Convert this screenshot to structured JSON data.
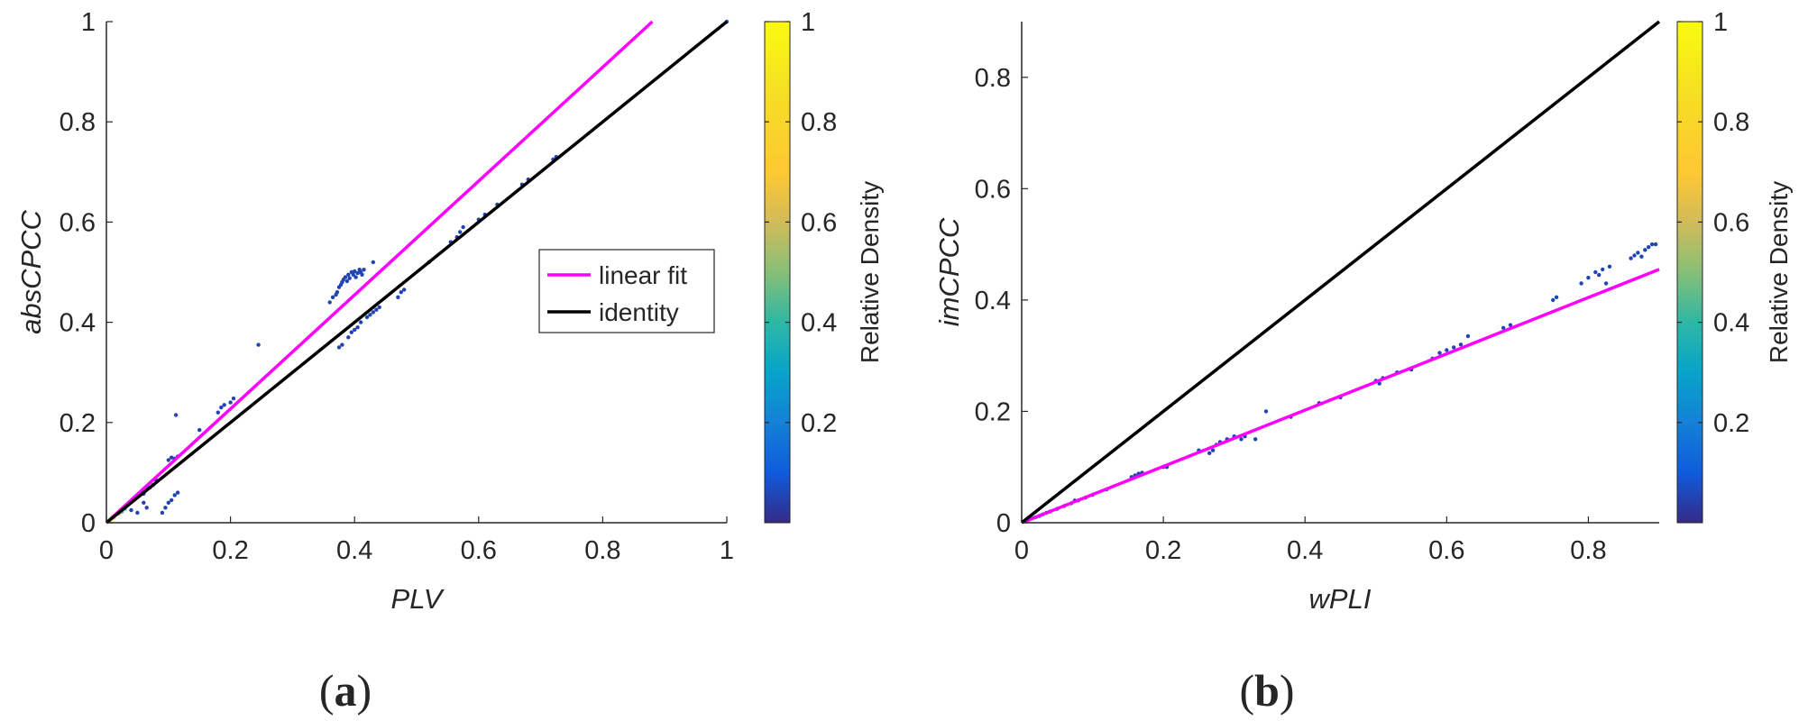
{
  "chart_data": [
    {
      "panel_label": {
        "open": "(",
        "letter": "a",
        "close": ")"
      },
      "type": "scatter",
      "title": "",
      "xlabel": "PLV",
      "ylabel": "absCPCC",
      "xlim": [
        0,
        1
      ],
      "ylim": [
        0,
        1
      ],
      "x_ticks": [
        0,
        0.2,
        0.4,
        0.6,
        0.8,
        1
      ],
      "x_tick_labels": [
        "0",
        "0.2",
        "0.4",
        "0.6",
        "0.8",
        "1"
      ],
      "y_ticks": [
        0,
        0.2,
        0.4,
        0.6,
        0.8,
        1
      ],
      "y_tick_labels": [
        "0",
        "0.2",
        "0.4",
        "0.6",
        "0.8",
        "1"
      ],
      "grid": false,
      "legend": {
        "placement": "center-right",
        "entries": [
          {
            "label": "linear fit",
            "color": "#ff00ff"
          },
          {
            "label": "identity",
            "color": "#000000"
          }
        ]
      },
      "lines": [
        {
          "name": "linear fit",
          "color": "#ff00ff",
          "x": [
            0,
            0.88
          ],
          "y": [
            0,
            1
          ]
        },
        {
          "name": "identity",
          "color": "#000000",
          "x": [
            0,
            1
          ],
          "y": [
            0,
            1
          ]
        }
      ],
      "colorbar": {
        "label": "Relative Density",
        "ticks": [
          0.2,
          0.4,
          0.6,
          0.8,
          1
        ],
        "tick_labels": [
          "0.2",
          "0.4",
          "0.6",
          "0.8",
          "1"
        ],
        "range": [
          0,
          1
        ]
      },
      "points": [
        [
          0.005,
          0.004,
          1.0
        ],
        [
          0.008,
          0.007,
          0.95
        ],
        [
          0.01,
          0.012,
          0.9
        ],
        [
          0.012,
          0.01,
          0.85
        ],
        [
          0.015,
          0.016,
          0.8
        ],
        [
          0.018,
          0.02,
          0.7
        ],
        [
          0.02,
          0.018,
          0.6
        ],
        [
          0.022,
          0.025,
          0.55
        ],
        [
          0.025,
          0.022,
          0.45
        ],
        [
          0.028,
          0.03,
          0.4
        ],
        [
          0.03,
          0.028,
          0.35
        ],
        [
          0.032,
          0.035,
          0.3
        ],
        [
          0.035,
          0.038,
          0.25
        ],
        [
          0.038,
          0.04,
          0.2
        ],
        [
          0.04,
          0.043,
          0.15
        ],
        [
          0.043,
          0.045,
          0.12
        ],
        [
          0.045,
          0.05,
          0.1
        ],
        [
          0.048,
          0.052,
          0.08
        ],
        [
          0.05,
          0.055,
          0.06
        ],
        [
          0.055,
          0.06,
          0.05
        ],
        [
          0.06,
          0.058,
          0.05
        ],
        [
          0.065,
          0.067,
          0.05
        ],
        [
          0.07,
          0.07,
          0.05
        ],
        [
          0.075,
          0.075,
          0.05
        ],
        [
          0.08,
          0.085,
          0.05
        ],
        [
          0.06,
          0.04,
          0.05
        ],
        [
          0.065,
          0.03,
          0.05
        ],
        [
          0.05,
          0.02,
          0.05
        ],
        [
          0.04,
          0.025,
          0.05
        ],
        [
          0.09,
          0.02,
          0.05
        ],
        [
          0.095,
          0.03,
          0.05
        ],
        [
          0.1,
          0.04,
          0.05
        ],
        [
          0.105,
          0.045,
          0.05
        ],
        [
          0.11,
          0.055,
          0.05
        ],
        [
          0.115,
          0.06,
          0.05
        ],
        [
          0.1,
          0.125,
          0.05
        ],
        [
          0.105,
          0.13,
          0.05
        ],
        [
          0.11,
          0.128,
          0.05
        ],
        [
          0.115,
          0.132,
          0.05
        ],
        [
          0.112,
          0.215,
          0.05
        ],
        [
          0.15,
          0.185,
          0.05
        ],
        [
          0.18,
          0.22,
          0.05
        ],
        [
          0.185,
          0.23,
          0.05
        ],
        [
          0.19,
          0.235,
          0.05
        ],
        [
          0.2,
          0.24,
          0.05
        ],
        [
          0.205,
          0.248,
          0.05
        ],
        [
          0.245,
          0.355,
          0.05
        ],
        [
          0.36,
          0.44,
          0.05
        ],
        [
          0.365,
          0.45,
          0.05
        ],
        [
          0.37,
          0.455,
          0.05
        ],
        [
          0.372,
          0.46,
          0.05
        ],
        [
          0.375,
          0.47,
          0.05
        ],
        [
          0.378,
          0.475,
          0.05
        ],
        [
          0.38,
          0.48,
          0.05
        ],
        [
          0.382,
          0.485,
          0.05
        ],
        [
          0.385,
          0.49,
          0.05
        ],
        [
          0.388,
          0.482,
          0.05
        ],
        [
          0.39,
          0.495,
          0.05
        ],
        [
          0.392,
          0.488,
          0.05
        ],
        [
          0.395,
          0.5,
          0.05
        ],
        [
          0.398,
          0.495,
          0.05
        ],
        [
          0.4,
          0.502,
          0.05
        ],
        [
          0.402,
          0.49,
          0.05
        ],
        [
          0.405,
          0.498,
          0.05
        ],
        [
          0.408,
          0.505,
          0.05
        ],
        [
          0.41,
          0.5,
          0.05
        ],
        [
          0.412,
          0.495,
          0.05
        ],
        [
          0.415,
          0.505,
          0.05
        ],
        [
          0.375,
          0.35,
          0.05
        ],
        [
          0.38,
          0.355,
          0.05
        ],
        [
          0.39,
          0.37,
          0.05
        ],
        [
          0.395,
          0.38,
          0.05
        ],
        [
          0.4,
          0.385,
          0.05
        ],
        [
          0.405,
          0.39,
          0.05
        ],
        [
          0.41,
          0.4,
          0.05
        ],
        [
          0.42,
          0.41,
          0.05
        ],
        [
          0.425,
          0.415,
          0.05
        ],
        [
          0.43,
          0.42,
          0.05
        ],
        [
          0.435,
          0.425,
          0.05
        ],
        [
          0.44,
          0.43,
          0.05
        ],
        [
          0.43,
          0.52,
          0.05
        ],
        [
          0.47,
          0.45,
          0.05
        ],
        [
          0.475,
          0.46,
          0.05
        ],
        [
          0.48,
          0.465,
          0.05
        ],
        [
          0.52,
          0.52,
          0.05
        ],
        [
          0.555,
          0.56,
          0.05
        ],
        [
          0.565,
          0.57,
          0.05
        ],
        [
          0.57,
          0.58,
          0.05
        ],
        [
          0.575,
          0.59,
          0.05
        ],
        [
          0.6,
          0.605,
          0.05
        ],
        [
          0.61,
          0.615,
          0.05
        ],
        [
          0.63,
          0.635,
          0.05
        ],
        [
          0.67,
          0.675,
          0.05
        ],
        [
          0.68,
          0.685,
          0.05
        ],
        [
          0.72,
          0.725,
          0.05
        ],
        [
          0.725,
          0.73,
          0.05
        ],
        [
          1.0,
          1.0,
          0.05
        ]
      ]
    },
    {
      "panel_label": {
        "open": "(",
        "letter": "b",
        "close": ")"
      },
      "type": "scatter",
      "title": "",
      "xlabel": "wPLI",
      "ylabel": "imCPCC",
      "xlim": [
        0,
        0.9
      ],
      "ylim": [
        0,
        0.9
      ],
      "x_ticks": [
        0,
        0.2,
        0.4,
        0.6,
        0.8
      ],
      "x_tick_labels": [
        "0",
        "0.2",
        "0.4",
        "0.6",
        "0.8"
      ],
      "y_ticks": [
        0,
        0.2,
        0.4,
        0.6,
        0.8
      ],
      "y_tick_labels": [
        "0",
        "0.2",
        "0.4",
        "0.6",
        "0.8"
      ],
      "grid": false,
      "lines": [
        {
          "name": "linear fit",
          "color": "#ff00ff",
          "x": [
            0,
            0.9
          ],
          "y": [
            0,
            0.455
          ]
        },
        {
          "name": "identity",
          "color": "#000000",
          "x": [
            0,
            0.9
          ],
          "y": [
            0,
            0.9
          ]
        }
      ],
      "colorbar": {
        "label": "Relative Density",
        "ticks": [
          0.2,
          0.4,
          0.6,
          0.8,
          1
        ],
        "tick_labels": [
          "0.2",
          "0.4",
          "0.6",
          "0.8",
          "1"
        ],
        "range": [
          0,
          1
        ]
      },
      "points": [
        [
          0.003,
          0.002,
          1.0
        ],
        [
          0.005,
          0.003,
          0.9
        ],
        [
          0.008,
          0.004,
          0.8
        ],
        [
          0.01,
          0.005,
          0.7
        ],
        [
          0.012,
          0.006,
          0.6
        ],
        [
          0.015,
          0.008,
          0.5
        ],
        [
          0.018,
          0.009,
          0.4
        ],
        [
          0.02,
          0.01,
          0.3
        ],
        [
          0.025,
          0.012,
          0.2
        ],
        [
          0.03,
          0.015,
          0.12
        ],
        [
          0.035,
          0.018,
          0.08
        ],
        [
          0.04,
          0.02,
          0.05
        ],
        [
          0.05,
          0.025,
          0.05
        ],
        [
          0.06,
          0.03,
          0.05
        ],
        [
          0.07,
          0.035,
          0.05
        ],
        [
          0.075,
          0.04,
          0.05
        ],
        [
          0.08,
          0.04,
          0.05
        ],
        [
          0.09,
          0.045,
          0.05
        ],
        [
          0.1,
          0.05,
          0.05
        ],
        [
          0.12,
          0.06,
          0.05
        ],
        [
          0.155,
          0.082,
          0.05
        ],
        [
          0.16,
          0.085,
          0.05
        ],
        [
          0.165,
          0.088,
          0.05
        ],
        [
          0.17,
          0.09,
          0.05
        ],
        [
          0.2,
          0.1,
          0.05
        ],
        [
          0.205,
          0.1,
          0.05
        ],
        [
          0.25,
          0.13,
          0.05
        ],
        [
          0.265,
          0.125,
          0.05
        ],
        [
          0.27,
          0.13,
          0.05
        ],
        [
          0.275,
          0.14,
          0.05
        ],
        [
          0.28,
          0.145,
          0.05
        ],
        [
          0.29,
          0.15,
          0.05
        ],
        [
          0.3,
          0.155,
          0.05
        ],
        [
          0.31,
          0.15,
          0.05
        ],
        [
          0.315,
          0.155,
          0.05
        ],
        [
          0.33,
          0.15,
          0.05
        ],
        [
          0.345,
          0.2,
          0.05
        ],
        [
          0.38,
          0.19,
          0.05
        ],
        [
          0.42,
          0.215,
          0.05
        ],
        [
          0.45,
          0.225,
          0.05
        ],
        [
          0.5,
          0.255,
          0.05
        ],
        [
          0.505,
          0.25,
          0.05
        ],
        [
          0.51,
          0.26,
          0.05
        ],
        [
          0.53,
          0.27,
          0.05
        ],
        [
          0.55,
          0.275,
          0.05
        ],
        [
          0.58,
          0.295,
          0.05
        ],
        [
          0.59,
          0.305,
          0.05
        ],
        [
          0.6,
          0.31,
          0.05
        ],
        [
          0.61,
          0.315,
          0.05
        ],
        [
          0.62,
          0.32,
          0.05
        ],
        [
          0.63,
          0.335,
          0.05
        ],
        [
          0.68,
          0.35,
          0.05
        ],
        [
          0.69,
          0.355,
          0.05
        ],
        [
          0.75,
          0.4,
          0.05
        ],
        [
          0.755,
          0.405,
          0.05
        ],
        [
          0.79,
          0.43,
          0.05
        ],
        [
          0.8,
          0.44,
          0.05
        ],
        [
          0.81,
          0.45,
          0.05
        ],
        [
          0.815,
          0.445,
          0.05
        ],
        [
          0.82,
          0.455,
          0.05
        ],
        [
          0.825,
          0.43,
          0.05
        ],
        [
          0.83,
          0.46,
          0.05
        ],
        [
          0.86,
          0.475,
          0.05
        ],
        [
          0.865,
          0.48,
          0.05
        ],
        [
          0.87,
          0.485,
          0.05
        ],
        [
          0.875,
          0.478,
          0.05
        ],
        [
          0.88,
          0.49,
          0.05
        ],
        [
          0.885,
          0.495,
          0.05
        ],
        [
          0.89,
          0.5,
          0.05
        ],
        [
          0.895,
          0.5,
          0.05
        ]
      ]
    }
  ]
}
